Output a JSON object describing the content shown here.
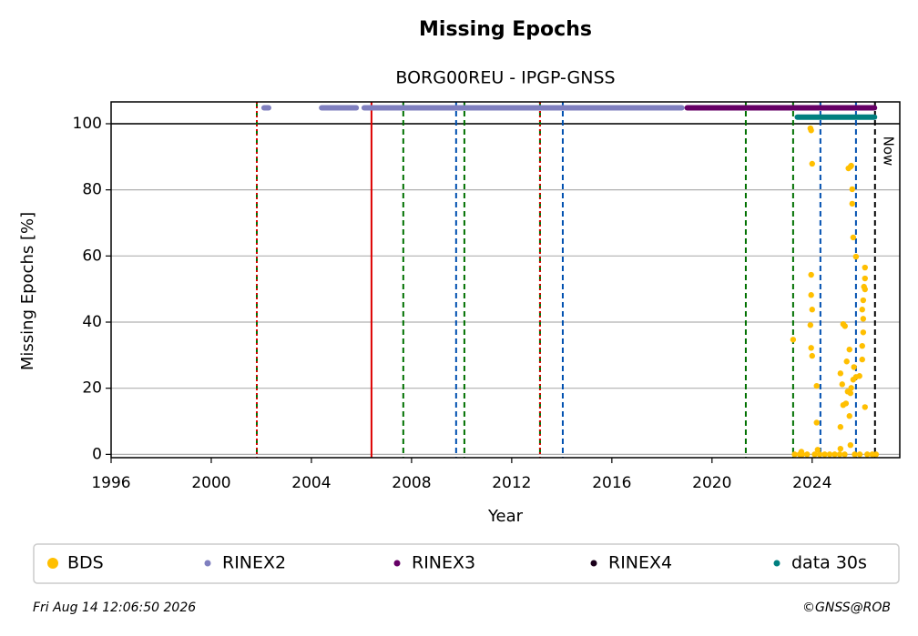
{
  "chart_data": {
    "type": "scatter",
    "title": "Missing Epochs",
    "subtitle": "BORG00REU - IPGP-GNSS",
    "x_label": "Year",
    "y_label": "Missing Epochs [%]",
    "xlim": [
      1996,
      2027.5
    ],
    "ylim": [
      -1,
      106.6
    ],
    "xticks": [
      1996,
      2000,
      2004,
      2008,
      2012,
      2016,
      2020,
      2024
    ],
    "yticks": [
      0,
      20,
      40,
      60,
      80,
      100
    ],
    "grid": true,
    "hline": 100,
    "series": [
      {
        "name": "BDS",
        "color": "#ffbf00",
        "kind": "points",
        "x": [
          2023.24,
          2023.93,
          2023.96,
          2024.0,
          2023.96,
          2023.96,
          2024.0,
          2023.93,
          2023.96,
          2024.0,
          2024.18,
          2024.18,
          2025.13,
          2025.13,
          2025.24,
          2025.31,
          2025.2,
          2025.24,
          2025.35,
          2025.38,
          2025.45,
          2025.53,
          2025.56,
          2025.6,
          2025.6,
          2025.64,
          2025.75,
          2025.49,
          2025.42,
          2025.53,
          2025.56,
          2025.64,
          2025.67,
          2025.49,
          2025.53,
          2025.75,
          2025.89,
          2026.11,
          2026.11,
          2026.07,
          2026.04,
          2026.0,
          2026.04,
          2026.04,
          2026.0,
          2026.0,
          2026.11,
          2026.11,
          2023.3,
          2023.5,
          2023.6,
          2023.8,
          2024.1,
          2024.3,
          2024.5,
          2024.7,
          2024.9,
          2025.1,
          2025.3,
          2025.7,
          2025.9,
          2026.2,
          2026.4,
          2026.55,
          2023.57,
          2024.22,
          2025.13
        ],
        "values": [
          34.7,
          98.6,
          98.0,
          87.9,
          54.3,
          48.2,
          43.8,
          39.1,
          32.2,
          29.8,
          20.7,
          9.6,
          8.3,
          24.5,
          39.4,
          38.8,
          21.2,
          14.9,
          15.4,
          28.1,
          86.5,
          87.0,
          87.3,
          80.2,
          75.8,
          65.6,
          59.8,
          31.7,
          19.0,
          18.5,
          20.1,
          22.6,
          26.4,
          11.6,
          2.8,
          23.4,
          23.7,
          56.5,
          53.2,
          50.7,
          46.6,
          43.8,
          41.0,
          36.9,
          32.8,
          28.7,
          14.3,
          49.9,
          0,
          0,
          0,
          0,
          0,
          0,
          0,
          0,
          0,
          0,
          0,
          0,
          0,
          0,
          0,
          0,
          0.8,
          1.4,
          1.7
        ]
      },
      {
        "name": "RINEX2",
        "color": "#7f7fbf",
        "kind": "band",
        "y": 104.8,
        "segments": [
          [
            2002.0,
            2002.4
          ],
          [
            2004.3,
            2005.9
          ],
          [
            2006.0,
            2018.9
          ]
        ]
      },
      {
        "name": "RINEX3",
        "color": "#660066",
        "kind": "band",
        "y": 104.8,
        "segments": [
          [
            2018.9,
            2026.6
          ]
        ]
      },
      {
        "name": "RINEX4",
        "color": "#1a001a",
        "kind": "band",
        "y": 104.8,
        "segments": []
      },
      {
        "name": "data 30s",
        "color": "#007f7f",
        "kind": "band",
        "y": 102,
        "segments": [
          [
            2023.3,
            2026.6
          ]
        ]
      }
    ],
    "vlines": [
      {
        "x": 2001.82,
        "color": "#007000",
        "style": "dashed"
      },
      {
        "x": 2001.82,
        "color": "#dd0000",
        "style": "dotted"
      },
      {
        "x": 2006.4,
        "color": "#dd0000",
        "style": "solid"
      },
      {
        "x": 2007.67,
        "color": "#007000",
        "style": "dashed"
      },
      {
        "x": 2009.78,
        "color": "#0050b0",
        "style": "dashed"
      },
      {
        "x": 2010.11,
        "color": "#007000",
        "style": "dashed"
      },
      {
        "x": 2013.13,
        "color": "#007000",
        "style": "dashed"
      },
      {
        "x": 2013.13,
        "color": "#dd0000",
        "style": "dotted"
      },
      {
        "x": 2014.04,
        "color": "#0050b0",
        "style": "dashed"
      },
      {
        "x": 2021.35,
        "color": "#007000",
        "style": "dashed"
      },
      {
        "x": 2023.24,
        "color": "#007000",
        "style": "dashed"
      },
      {
        "x": 2024.33,
        "color": "#0050b0",
        "style": "dashed"
      },
      {
        "x": 2025.75,
        "color": "#0050b0",
        "style": "dashed"
      },
      {
        "x": 2026.51,
        "color": "#000000",
        "style": "dashed",
        "label": "Now"
      }
    ],
    "footer_left": "Fri Aug 14 12:06:50 2026",
    "footer_right": "©GNSS@ROB"
  }
}
